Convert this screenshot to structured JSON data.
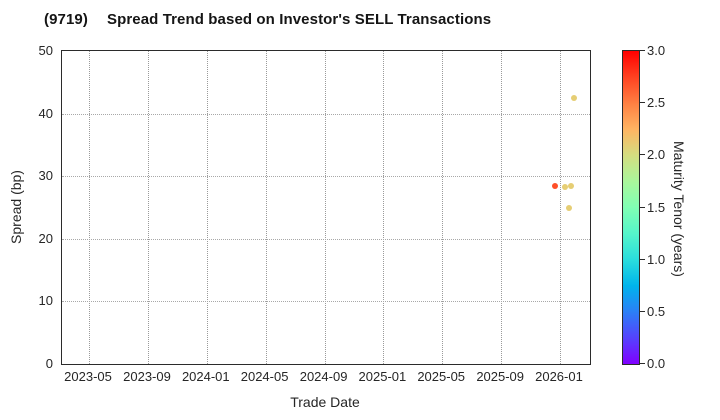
{
  "header": {
    "title_id": "(9719)",
    "title_main": "Spread Trend based on Investor's SELL Transactions"
  },
  "colors": {
    "background": "#ffffff",
    "spine": "#2b2b2b",
    "grid": "#a0a0a0",
    "text": "#262626",
    "colormap_min": "#8000ff",
    "colormap_mid": "#80ffb4",
    "colormap_max": "#ff0000",
    "point_red": "#ff4f28",
    "point_tan": "#e6cb70"
  },
  "chart_data": {
    "type": "scatter",
    "title": "(9719)  Spread Trend based on Investor's SELL Transactions",
    "xlabel": "Trade Date",
    "ylabel": "Spread (bp)",
    "colorbar_label": "Maturity Tenor (years)",
    "xlim_decimal_years": [
      2023.18,
      2026.17
    ],
    "ylim": [
      0,
      50
    ],
    "colorbar_range": [
      0.0,
      3.0
    ],
    "colormap": "rainbow",
    "grid": {
      "on": true,
      "style": "dotted"
    },
    "legend_position": "colorbar-right",
    "x_ticks": [
      {
        "label": "2023-05",
        "value": 2023.333
      },
      {
        "label": "2023-09",
        "value": 2023.667
      },
      {
        "label": "2024-01",
        "value": 2024.0
      },
      {
        "label": "2024-05",
        "value": 2024.333
      },
      {
        "label": "2024-09",
        "value": 2024.667
      },
      {
        "label": "2025-01",
        "value": 2025.0
      },
      {
        "label": "2025-05",
        "value": 2025.333
      },
      {
        "label": "2025-09",
        "value": 2025.667
      },
      {
        "label": "2026-01",
        "value": 2026.0
      }
    ],
    "y_ticks": [
      0,
      10,
      20,
      30,
      40,
      50
    ],
    "colorbar_ticks": [
      0.0,
      0.5,
      1.0,
      1.5,
      2.0,
      2.5,
      3.0
    ],
    "points": [
      {
        "date": "2025-12",
        "x": 2025.97,
        "spread": 28.4,
        "maturity_tenor": 2.7
      },
      {
        "date": "2026-01",
        "x": 2026.03,
        "spread": 28.3,
        "maturity_tenor": 2.1
      },
      {
        "date": "2026-01",
        "x": 2026.06,
        "spread": 28.5,
        "maturity_tenor": 2.1
      },
      {
        "date": "2026-01",
        "x": 2026.05,
        "spread": 24.9,
        "maturity_tenor": 2.1
      },
      {
        "date": "2026-01",
        "x": 2026.08,
        "spread": 42.5,
        "maturity_tenor": 2.1
      }
    ]
  }
}
